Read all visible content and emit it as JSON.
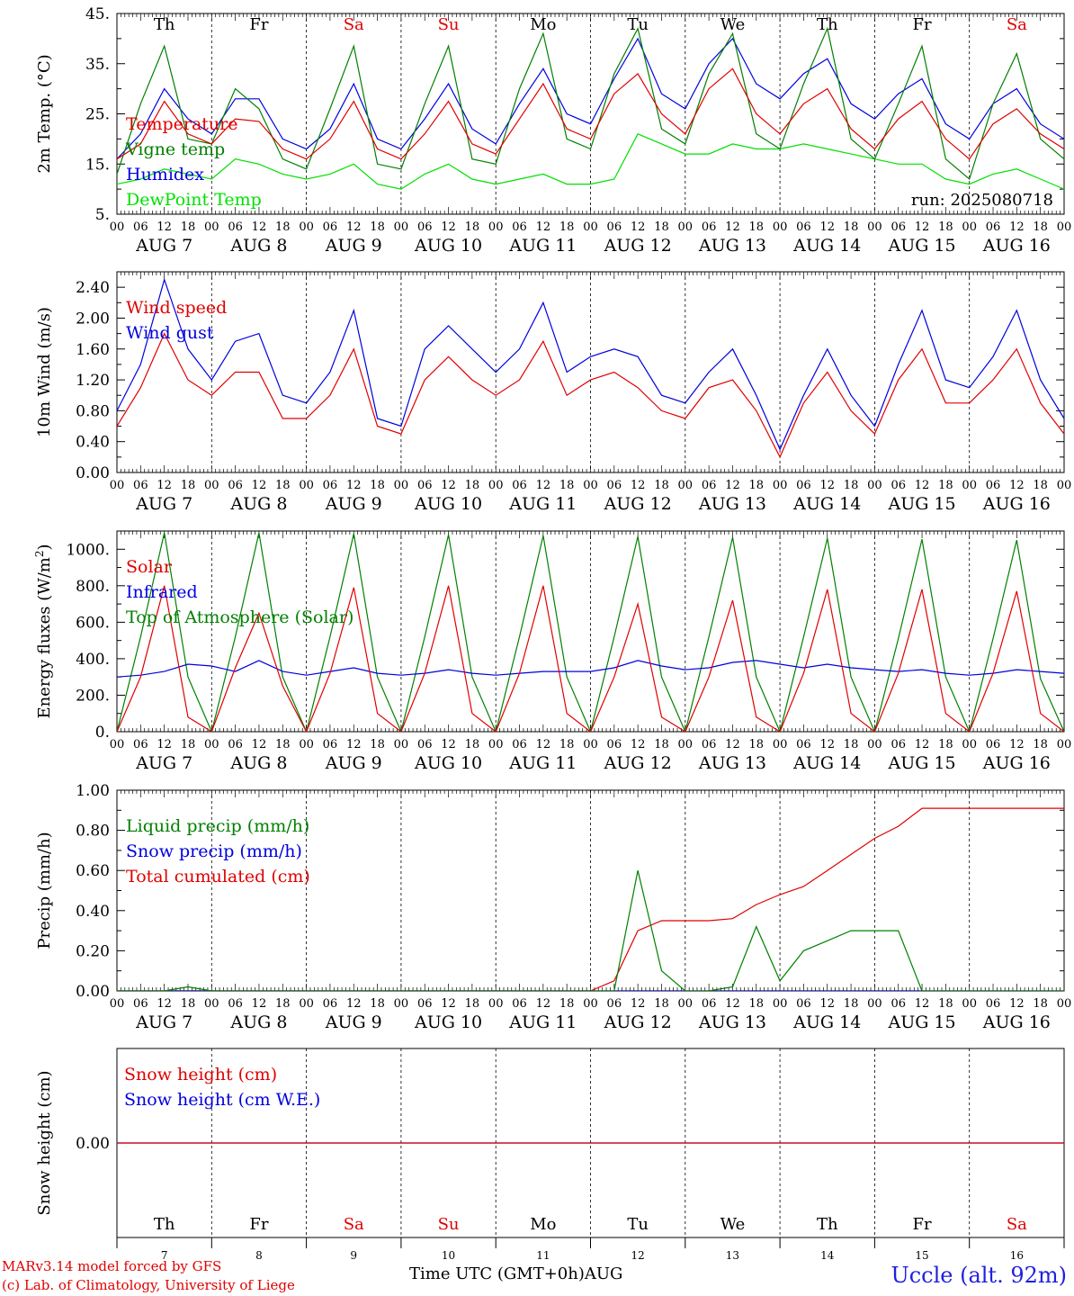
{
  "chart_data": [
    {
      "type": "line",
      "ylabel": "2m Temp. (°C)",
      "ylim": [
        5,
        45
      ],
      "yticks": [
        "5.",
        "15.",
        "25.",
        "35.",
        "45."
      ],
      "annotation": "run: 2025080718",
      "x": [
        0,
        6,
        12,
        18,
        24,
        30,
        36,
        42,
        48,
        54,
        60,
        66,
        72,
        78,
        84,
        90,
        96,
        102,
        108,
        114,
        120,
        126,
        132,
        138,
        144,
        150,
        156,
        162,
        168,
        174,
        180,
        186,
        192,
        198,
        204,
        210,
        216,
        222,
        228,
        234,
        240
      ],
      "series": [
        {
          "name": "Temperature",
          "color": "#e00000",
          "values": [
            16,
            19,
            27.5,
            21,
            19,
            24,
            23.5,
            18,
            16,
            20,
            27.5,
            18,
            16,
            21,
            27.5,
            19,
            17,
            24,
            31,
            22,
            20,
            29,
            33,
            25,
            21,
            30,
            34,
            25,
            21,
            27,
            30,
            22,
            18,
            24,
            27.5,
            20,
            16,
            23,
            26,
            21,
            18
          ]
        },
        {
          "name": "Vigne temp",
          "color": "#008000",
          "values": [
            13,
            27,
            38.5,
            20,
            19,
            30,
            26,
            16,
            14,
            26,
            38.5,
            15,
            14,
            27,
            38.5,
            16,
            15,
            30,
            41,
            20,
            18,
            33,
            42,
            22,
            19,
            33,
            41,
            21,
            18,
            31,
            42,
            20,
            16,
            27,
            38.5,
            16,
            12,
            27,
            37,
            20,
            16
          ]
        },
        {
          "name": "Humidex",
          "color": "#0000e0",
          "values": [
            16,
            21,
            30,
            24,
            21,
            28,
            28,
            20,
            18,
            22,
            31,
            20,
            18,
            24,
            31,
            22,
            19,
            27,
            34,
            25,
            23,
            32,
            40,
            29,
            26,
            35,
            40,
            31,
            28,
            33,
            36,
            27,
            24,
            29,
            32,
            23,
            20,
            27,
            30,
            23,
            20
          ]
        },
        {
          "name": "DewPoint Temp",
          "color": "#00e000",
          "values": [
            11,
            12,
            14,
            13,
            12,
            16,
            15,
            13,
            12,
            13,
            15,
            11,
            10,
            13,
            15,
            12,
            11,
            12,
            13,
            11,
            11,
            12,
            21,
            19,
            17,
            17,
            19,
            18,
            18,
            19,
            18,
            17,
            16,
            15,
            15,
            12,
            11,
            13,
            14,
            12,
            10
          ]
        }
      ]
    },
    {
      "type": "line",
      "ylabel": "10m Wind (m/s)",
      "ylim": [
        0,
        2.6
      ],
      "yticks": [
        "0.00",
        "0.40",
        "0.80",
        "1.20",
        "1.60",
        "2.00",
        "2.40"
      ],
      "x": [
        0,
        6,
        12,
        18,
        24,
        30,
        36,
        42,
        48,
        54,
        60,
        66,
        72,
        78,
        84,
        90,
        96,
        102,
        108,
        114,
        120,
        126,
        132,
        138,
        144,
        150,
        156,
        162,
        168,
        174,
        180,
        186,
        192,
        198,
        204,
        210,
        216,
        222,
        228,
        234,
        240
      ],
      "series": [
        {
          "name": "Wind speed",
          "color": "#e00000",
          "values": [
            0.6,
            1.1,
            1.8,
            1.2,
            1.0,
            1.3,
            1.3,
            0.7,
            0.7,
            1.0,
            1.6,
            0.6,
            0.5,
            1.2,
            1.5,
            1.2,
            1.0,
            1.2,
            1.7,
            1.0,
            1.2,
            1.3,
            1.1,
            0.8,
            0.7,
            1.1,
            1.2,
            0.8,
            0.2,
            0.9,
            1.3,
            0.8,
            0.5,
            1.2,
            1.6,
            0.9,
            0.9,
            1.2,
            1.6,
            0.9,
            0.5
          ]
        },
        {
          "name": "Wind gust",
          "color": "#0000e0",
          "values": [
            0.8,
            1.4,
            2.5,
            1.6,
            1.2,
            1.7,
            1.8,
            1.0,
            0.9,
            1.3,
            2.1,
            0.7,
            0.6,
            1.6,
            1.9,
            1.6,
            1.3,
            1.6,
            2.2,
            1.3,
            1.5,
            1.6,
            1.5,
            1.0,
            0.9,
            1.3,
            1.6,
            1.0,
            0.3,
            1.0,
            1.6,
            1.0,
            0.6,
            1.4,
            2.1,
            1.2,
            1.1,
            1.5,
            2.1,
            1.2,
            0.7
          ]
        }
      ]
    },
    {
      "type": "line",
      "ylabel": "Energy fluxes (W/m²)",
      "ylim": [
        0,
        1100
      ],
      "yticks": [
        "0.",
        "200.",
        "400.",
        "600.",
        "800.",
        "1000."
      ],
      "x": [
        0,
        6,
        12,
        18,
        24,
        30,
        36,
        42,
        48,
        54,
        60,
        66,
        72,
        78,
        84,
        90,
        96,
        102,
        108,
        114,
        120,
        126,
        132,
        138,
        144,
        150,
        156,
        162,
        168,
        174,
        180,
        186,
        192,
        198,
        204,
        210,
        216,
        222,
        228,
        234,
        240
      ],
      "series": [
        {
          "name": "Solar",
          "color": "#e00000",
          "values": [
            0,
            300,
            800,
            80,
            0,
            350,
            650,
            250,
            0,
            320,
            790,
            100,
            0,
            320,
            800,
            100,
            0,
            320,
            800,
            100,
            0,
            300,
            700,
            80,
            0,
            300,
            720,
            80,
            0,
            320,
            780,
            100,
            0,
            320,
            780,
            100,
            0,
            320,
            770,
            100,
            0
          ]
        },
        {
          "name": "Infrared",
          "color": "#0000e0",
          "values": [
            300,
            310,
            330,
            370,
            360,
            330,
            390,
            330,
            310,
            330,
            350,
            320,
            310,
            320,
            340,
            320,
            310,
            320,
            330,
            330,
            330,
            350,
            390,
            360,
            340,
            350,
            380,
            390,
            370,
            350,
            370,
            350,
            340,
            330,
            340,
            320,
            310,
            320,
            340,
            330,
            320
          ]
        },
        {
          "name": "Top of Atmosphere (Solar)",
          "color": "#008000",
          "values": [
            0,
            520,
            1090,
            300,
            0,
            520,
            1090,
            300,
            0,
            520,
            1085,
            300,
            0,
            520,
            1080,
            300,
            0,
            520,
            1075,
            300,
            0,
            520,
            1070,
            300,
            0,
            520,
            1065,
            300,
            0,
            520,
            1060,
            300,
            0,
            510,
            1055,
            300,
            0,
            510,
            1050,
            290,
            0
          ]
        }
      ]
    },
    {
      "type": "line",
      "ylabel": "Precip (mm/h)",
      "ylim": [
        0,
        1.0
      ],
      "yticks": [
        "0.00",
        "0.20",
        "0.40",
        "0.60",
        "0.80",
        "1.00"
      ],
      "x": [
        0,
        6,
        12,
        18,
        24,
        30,
        36,
        42,
        48,
        54,
        60,
        66,
        72,
        78,
        84,
        90,
        96,
        102,
        108,
        114,
        120,
        126,
        132,
        138,
        144,
        150,
        156,
        162,
        168,
        174,
        180,
        186,
        192,
        198,
        204,
        210,
        216,
        222,
        228,
        234,
        240
      ],
      "series": [
        {
          "name": "Liquid precip (mm/h)",
          "color": "#008000",
          "values": [
            0,
            0,
            0,
            0.02,
            0,
            0,
            0,
            0,
            0,
            0,
            0,
            0,
            0,
            0,
            0,
            0,
            0,
            0,
            0,
            0,
            0,
            0,
            0.6,
            0.1,
            0,
            0,
            0.02,
            0.32,
            0.05,
            0.2,
            0.25,
            0.3,
            0.3,
            0.3,
            0,
            0,
            0,
            0,
            0,
            0,
            0
          ]
        },
        {
          "name": "Snow precip (mm/h)",
          "color": "#0000e0",
          "values": [
            0,
            0,
            0,
            0,
            0,
            0,
            0,
            0,
            0,
            0,
            0,
            0,
            0,
            0,
            0,
            0,
            0,
            0,
            0,
            0,
            0,
            0,
            0,
            0,
            0,
            0,
            0,
            0,
            0,
            0,
            0,
            0,
            0,
            0,
            0,
            0,
            0,
            0,
            0,
            0,
            0
          ]
        },
        {
          "name": "Total cumulated (cm)",
          "color": "#e00000",
          "values": [
            0,
            0,
            0,
            0,
            0,
            0,
            0,
            0,
            0,
            0,
            0,
            0,
            0,
            0,
            0,
            0,
            0,
            0,
            0,
            0,
            0,
            0.05,
            0.3,
            0.35,
            0.35,
            0.35,
            0.36,
            0.43,
            0.48,
            0.52,
            0.6,
            0.68,
            0.76,
            0.82,
            0.91,
            0.91,
            0.91,
            0.91,
            0.91,
            0.91,
            0.91
          ]
        }
      ]
    },
    {
      "type": "line",
      "ylabel": "Snow height (cm)",
      "ylim": [
        -1,
        1
      ],
      "yticks": [
        "0.00"
      ],
      "x": [
        0,
        240
      ],
      "series": [
        {
          "name": "Snow height (cm)",
          "color": "#e00000",
          "values": [
            0,
            0
          ]
        },
        {
          "name": "Snow height (cm W.E.)",
          "color": "#0000e0",
          "values": [
            0,
            0
          ]
        }
      ]
    }
  ],
  "days": [
    {
      "abbr": "Th",
      "color": "#000000",
      "date": "AUG  7",
      "num": "7"
    },
    {
      "abbr": "Fr",
      "color": "#000000",
      "date": "AUG  8",
      "num": "8"
    },
    {
      "abbr": "Sa",
      "color": "#e00000",
      "date": "AUG  9",
      "num": "9"
    },
    {
      "abbr": "Su",
      "color": "#e00000",
      "date": "AUG 10",
      "num": "10"
    },
    {
      "abbr": "Mo",
      "color": "#000000",
      "date": "AUG 11",
      "num": "11"
    },
    {
      "abbr": "Tu",
      "color": "#000000",
      "date": "AUG 12",
      "num": "12"
    },
    {
      "abbr": "We",
      "color": "#000000",
      "date": "AUG 13",
      "num": "13"
    },
    {
      "abbr": "Th",
      "color": "#000000",
      "date": "AUG 14",
      "num": "14"
    },
    {
      "abbr": "Fr",
      "color": "#000000",
      "date": "AUG 15",
      "num": "15"
    },
    {
      "abbr": "Sa",
      "color": "#e00000",
      "date": "AUG 16",
      "num": "16"
    }
  ],
  "hour_ticks": [
    "00",
    "06",
    "12",
    "18"
  ],
  "hour_end": "00",
  "footer": {
    "model_line": "MARv3.14 model forced by GFS",
    "copyright_line": "(c) Lab. of Climatology, University of Liege",
    "time_axis": "Time UTC (GMT+0h)AUG",
    "station": "Uccle (alt. 92m)"
  }
}
